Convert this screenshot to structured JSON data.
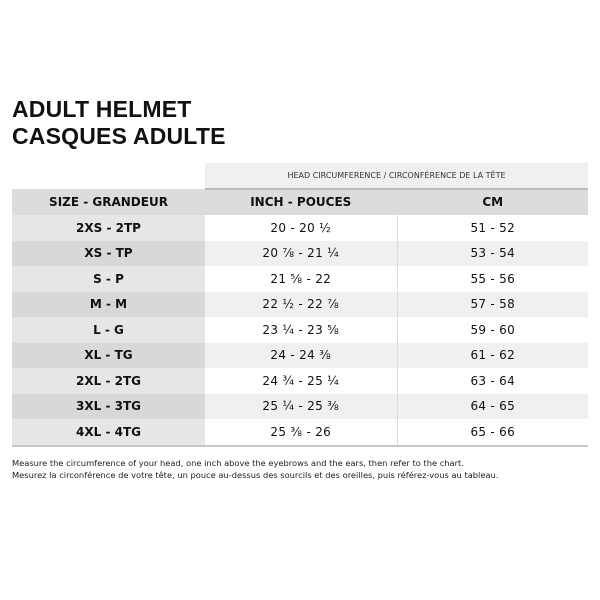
{
  "title": {
    "line1": "ADULT HELMET",
    "line2": "CASQUES ADULTE"
  },
  "table": {
    "group_header": "HEAD CIRCUMFERENCE / CIRCONFÉRENCE DE LA TÊTE",
    "headers": [
      "SIZE - GRANDEUR",
      "INCH - POUCES",
      "CM"
    ],
    "rows": [
      [
        "2XS - 2TP",
        "20 - 20 ½",
        "51 - 52"
      ],
      [
        "XS - TP",
        "20 ⅞ - 21 ¼",
        "53 - 54"
      ],
      [
        "S - P",
        "21 ⅝ - 22",
        "55 - 56"
      ],
      [
        "M - M",
        "22 ½ - 22 ⅞",
        "57 - 58"
      ],
      [
        "L - G",
        "23 ¼ - 23 ⅝",
        "59 - 60"
      ],
      [
        "XL - TG",
        "24 - 24 ⅜",
        "61 - 62"
      ],
      [
        "2XL - 2TG",
        "24 ¾ - 25 ¼",
        "63 - 64"
      ],
      [
        "3XL - 3TG",
        "25 ¼ - 25 ⅜",
        "64 - 65"
      ],
      [
        "4XL - 4TG",
        "25 ⅜ - 26",
        "65 - 66"
      ]
    ]
  },
  "notes": {
    "en": "Measure the circumference of your head, one inch above the eyebrows and the ears, then refer to the chart.",
    "fr": "Mesurez la circonférence de votre tête, un pouce au-dessus des sourcils et des oreilles, puis référez-vous au tableau."
  }
}
